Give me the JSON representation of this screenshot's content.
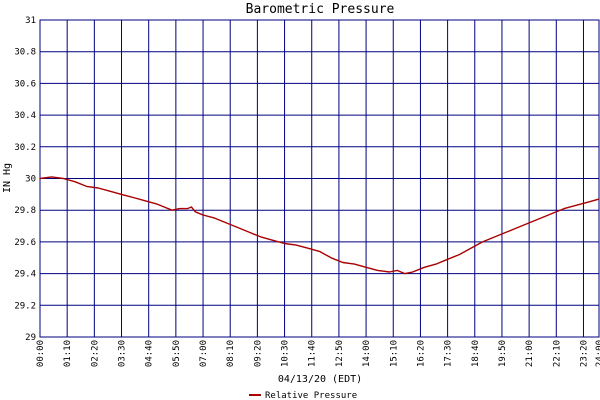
{
  "chart_data": {
    "type": "line",
    "title": "Barometric Pressure",
    "xlabel": "04/13/20 (EDT)",
    "ylabel": "IN Hg",
    "ylim": [
      29,
      31
    ],
    "yticks": [
      29,
      29.2,
      29.4,
      29.6,
      29.8,
      30,
      30.2,
      30.4,
      30.6,
      30.8,
      31
    ],
    "ytick_labels": [
      "29",
      "29.2",
      "29.4",
      "29.6",
      "29.8",
      "30",
      "30.2",
      "30.4",
      "30.6",
      "30.8",
      "31"
    ],
    "xlim": [
      0,
      1440
    ],
    "xtick_minutes": [
      0,
      70,
      140,
      210,
      280,
      350,
      420,
      490,
      560,
      630,
      700,
      770,
      840,
      910,
      980,
      1050,
      1120,
      1190,
      1260,
      1330,
      1400,
      1440
    ],
    "xtick_labels": [
      "00:00",
      "01:10",
      "02:20",
      "03:30",
      "04:40",
      "05:50",
      "07:00",
      "08:10",
      "09:20",
      "10:30",
      "11:40",
      "12:50",
      "14:00",
      "15:10",
      "16:20",
      "17:30",
      "18:40",
      "19:50",
      "21:00",
      "22:10",
      "23:20",
      "24:00"
    ],
    "grid": true,
    "legend_position": "bottom-center",
    "colors": {
      "grid": "#000080",
      "series": "#aa0000"
    },
    "series": [
      {
        "name": "Relative Pressure",
        "x": [
          0,
          30,
          60,
          90,
          120,
          150,
          180,
          210,
          240,
          270,
          300,
          320,
          340,
          360,
          380,
          390,
          400,
          420,
          450,
          480,
          510,
          540,
          570,
          600,
          630,
          660,
          690,
          720,
          750,
          780,
          810,
          840,
          870,
          900,
          920,
          940,
          960,
          990,
          1020,
          1050,
          1080,
          1110,
          1140,
          1170,
          1200,
          1230,
          1260,
          1290,
          1320,
          1350,
          1380,
          1410,
          1440
        ],
        "values": [
          30.0,
          30.01,
          30.0,
          29.98,
          29.95,
          29.94,
          29.92,
          29.9,
          29.88,
          29.86,
          29.84,
          29.82,
          29.8,
          29.81,
          29.81,
          29.82,
          29.79,
          29.77,
          29.75,
          29.72,
          29.69,
          29.66,
          29.63,
          29.61,
          29.59,
          29.58,
          29.56,
          29.54,
          29.5,
          29.47,
          29.46,
          29.44,
          29.42,
          29.41,
          29.42,
          29.4,
          29.41,
          29.44,
          29.46,
          29.49,
          29.52,
          29.56,
          29.6,
          29.63,
          29.66,
          29.69,
          29.72,
          29.75,
          29.78,
          29.81,
          29.83,
          29.85,
          29.87
        ]
      }
    ]
  }
}
